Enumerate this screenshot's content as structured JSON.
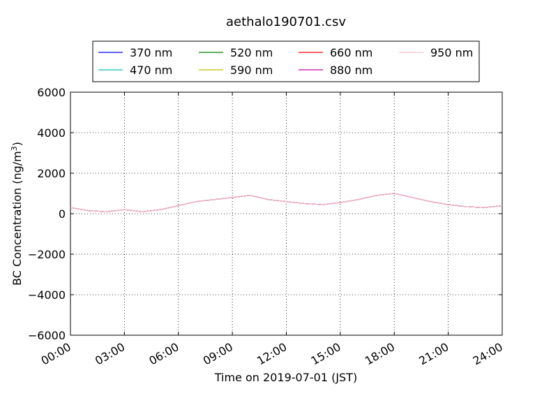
{
  "chart_data": {
    "type": "line",
    "title": "aethalo190701.csv",
    "xlabel": "Time on 2019-07-01 (JST)",
    "ylabel": "BC Concentration (ng/m",
    "ylabel_superscript": "3",
    "ylabel_suffix": ")",
    "xlim": [
      "00:00",
      "24:00"
    ],
    "ylim": [
      -6000,
      6000
    ],
    "xticks": [
      "00:00",
      "03:00",
      "06:00",
      "09:00",
      "12:00",
      "15:00",
      "18:00",
      "21:00",
      "24:00"
    ],
    "yticks": [
      6000,
      4000,
      2000,
      0,
      -2000,
      -4000,
      -6000
    ],
    "ytick_labels": [
      "6000",
      "4000",
      "2000",
      "0",
      "−2000",
      "−4000",
      "−6000"
    ],
    "grid": true,
    "legend_position": "top-center",
    "series": [
      {
        "name": "370 nm",
        "color": "#0000ff",
        "x": [
          "00:00",
          "01:00",
          "02:00",
          "03:00",
          "04:00",
          "05:00",
          "06:00",
          "07:00",
          "08:00",
          "09:00",
          "10:00",
          "11:00",
          "12:00",
          "13:00",
          "14:00",
          "15:00",
          "16:00",
          "17:00",
          "18:00",
          "19:00",
          "20:00",
          "21:00",
          "22:00",
          "23:00",
          "24:00"
        ],
        "values": [
          300,
          150,
          100,
          200,
          100,
          200,
          400,
          600,
          700,
          800,
          900,
          700,
          600,
          500,
          450,
          550,
          700,
          900,
          1000,
          800,
          600,
          450,
          350,
          300,
          400
        ]
      },
      {
        "name": "470 nm",
        "color": "#00bfbf",
        "x": [
          "00:00",
          "01:00",
          "02:00",
          "03:00",
          "04:00",
          "05:00",
          "06:00",
          "07:00",
          "08:00",
          "09:00",
          "10:00",
          "11:00",
          "12:00",
          "13:00",
          "14:00",
          "15:00",
          "16:00",
          "17:00",
          "18:00",
          "19:00",
          "20:00",
          "21:00",
          "22:00",
          "23:00",
          "24:00"
        ],
        "values": [
          300,
          150,
          100,
          200,
          100,
          200,
          400,
          600,
          700,
          800,
          900,
          700,
          600,
          500,
          450,
          550,
          700,
          900,
          1000,
          800,
          600,
          450,
          350,
          300,
          400
        ]
      },
      {
        "name": "520 nm",
        "color": "#008000",
        "x": [
          "00:00",
          "01:00",
          "02:00",
          "03:00",
          "04:00",
          "05:00",
          "06:00",
          "07:00",
          "08:00",
          "09:00",
          "10:00",
          "11:00",
          "12:00",
          "13:00",
          "14:00",
          "15:00",
          "16:00",
          "17:00",
          "18:00",
          "19:00",
          "20:00",
          "21:00",
          "22:00",
          "23:00",
          "24:00"
        ],
        "values": [
          300,
          150,
          100,
          200,
          100,
          200,
          400,
          600,
          700,
          800,
          900,
          700,
          600,
          500,
          450,
          550,
          700,
          900,
          1000,
          800,
          600,
          450,
          350,
          300,
          400
        ]
      },
      {
        "name": "590 nm",
        "color": "#bfbf00",
        "x": [
          "00:00",
          "01:00",
          "02:00",
          "03:00",
          "04:00",
          "05:00",
          "06:00",
          "07:00",
          "08:00",
          "09:00",
          "10:00",
          "11:00",
          "12:00",
          "13:00",
          "14:00",
          "15:00",
          "16:00",
          "17:00",
          "18:00",
          "19:00",
          "20:00",
          "21:00",
          "22:00",
          "23:00",
          "24:00"
        ],
        "values": [
          300,
          150,
          100,
          200,
          100,
          200,
          400,
          600,
          700,
          800,
          900,
          700,
          600,
          500,
          450,
          550,
          700,
          900,
          1000,
          800,
          600,
          450,
          350,
          300,
          400
        ]
      },
      {
        "name": "660 nm",
        "color": "#ff0000",
        "x": [
          "00:00",
          "01:00",
          "02:00",
          "03:00",
          "04:00",
          "05:00",
          "06:00",
          "07:00",
          "08:00",
          "09:00",
          "10:00",
          "11:00",
          "12:00",
          "13:00",
          "14:00",
          "15:00",
          "16:00",
          "17:00",
          "18:00",
          "19:00",
          "20:00",
          "21:00",
          "22:00",
          "23:00",
          "24:00"
        ],
        "values": [
          300,
          150,
          100,
          200,
          100,
          200,
          400,
          600,
          700,
          800,
          900,
          700,
          600,
          500,
          450,
          550,
          700,
          900,
          1000,
          800,
          600,
          450,
          350,
          300,
          400
        ]
      },
      {
        "name": "880 nm",
        "color": "#bf00bf",
        "x": [
          "00:00",
          "01:00",
          "02:00",
          "03:00",
          "04:00",
          "05:00",
          "06:00",
          "07:00",
          "08:00",
          "09:00",
          "10:00",
          "11:00",
          "12:00",
          "13:00",
          "14:00",
          "15:00",
          "16:00",
          "17:00",
          "18:00",
          "19:00",
          "20:00",
          "21:00",
          "22:00",
          "23:00",
          "24:00"
        ],
        "values": [
          300,
          150,
          100,
          200,
          100,
          200,
          400,
          600,
          700,
          800,
          900,
          700,
          600,
          500,
          450,
          550,
          700,
          900,
          1000,
          800,
          600,
          450,
          350,
          300,
          400
        ]
      },
      {
        "name": "950 nm",
        "color": "#ffc0cb",
        "x": [
          "00:00",
          "01:00",
          "02:00",
          "03:00",
          "04:00",
          "05:00",
          "06:00",
          "07:00",
          "08:00",
          "09:00",
          "10:00",
          "11:00",
          "12:00",
          "13:00",
          "14:00",
          "15:00",
          "16:00",
          "17:00",
          "18:00",
          "19:00",
          "20:00",
          "21:00",
          "22:00",
          "23:00",
          "24:00"
        ],
        "values": [
          300,
          150,
          100,
          200,
          100,
          200,
          400,
          600,
          700,
          800,
          900,
          700,
          600,
          500,
          450,
          550,
          700,
          900,
          1000,
          800,
          600,
          450,
          350,
          300,
          400
        ]
      }
    ]
  }
}
